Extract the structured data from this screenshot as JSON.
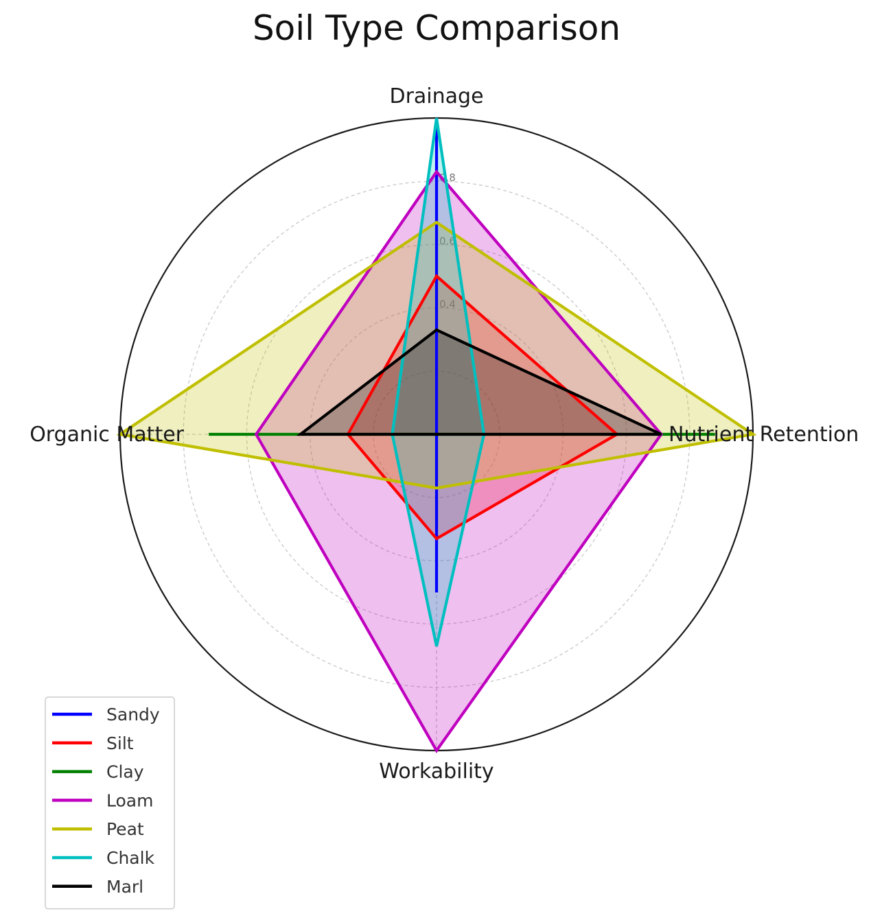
{
  "chart_data": {
    "type": "radar",
    "title": "Soil Type Comparison",
    "axes": [
      "Drainage",
      "Nutrient Retention",
      "Workability",
      "Organic Matter"
    ],
    "range": [
      0,
      1
    ],
    "rticks": [
      0.2,
      0.4,
      0.6,
      0.8
    ],
    "rtick_labels": [
      "",
      "0.4",
      "0.6",
      "0.8"
    ],
    "grid": true,
    "legend_position": "lower-left",
    "series": [
      {
        "name": "Sandy",
        "color": "#0000ff",
        "values": [
          0.98,
          0.0,
          0.5,
          0.0
        ],
        "fill": false
      },
      {
        "name": "Silt",
        "color": "#ff0000",
        "values": [
          0.5,
          0.57,
          0.33,
          0.28
        ],
        "fill": true
      },
      {
        "name": "Clay",
        "color": "#008000",
        "values": [
          0.0,
          0.88,
          0.0,
          0.72
        ],
        "fill": false
      },
      {
        "name": "Loam",
        "color": "#bf00bf",
        "values": [
          0.83,
          0.71,
          1.0,
          0.57
        ],
        "fill": true
      },
      {
        "name": "Peat",
        "color": "#bfbf00",
        "values": [
          0.67,
          1.0,
          0.17,
          1.0
        ],
        "fill": true
      },
      {
        "name": "Chalk",
        "color": "#00bfbf",
        "values": [
          1.0,
          0.15,
          0.67,
          0.14
        ],
        "fill": true
      },
      {
        "name": "Marl",
        "color": "#000000",
        "values": [
          0.33,
          0.71,
          0.0,
          0.43
        ],
        "fill": true
      }
    ]
  }
}
